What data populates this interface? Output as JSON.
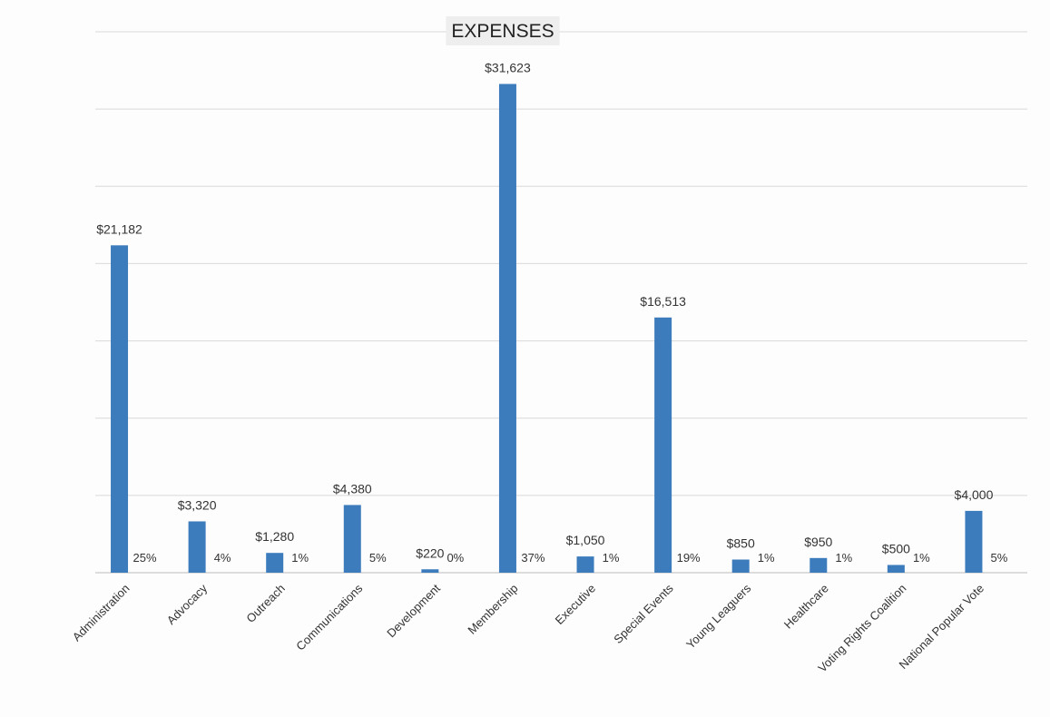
{
  "chart_data": {
    "type": "bar",
    "title": "EXPENSES",
    "xlabel": "",
    "ylabel": "",
    "ylim": [
      0,
      35000
    ],
    "grid": true,
    "categories": [
      "Administration",
      "Advocacy",
      "Outreach",
      "Communications",
      "Development",
      "Membership",
      "Executive",
      "Special Events",
      "Young Leaguers",
      "Healthcare",
      "Voting Rights Coalition",
      "National Popular Vote"
    ],
    "values": [
      21182,
      3320,
      1280,
      4380,
      220,
      31623,
      1050,
      16513,
      850,
      950,
      500,
      4000
    ],
    "value_labels": [
      "$21,182",
      "$3,320",
      "$1,280",
      "$4,380",
      "$220",
      "$31,623",
      "$1,050",
      "$16,513",
      "$850",
      "$950",
      "$500",
      "$4,000"
    ],
    "percent_labels": [
      "25%",
      "4%",
      "1%",
      "5%",
      "0%",
      "37%",
      "1%",
      "19%",
      "1%",
      "1%",
      "1%",
      "5%"
    ],
    "colors": {
      "bar": "#3c7cbd",
      "grid": "#d9d9d9"
    }
  }
}
